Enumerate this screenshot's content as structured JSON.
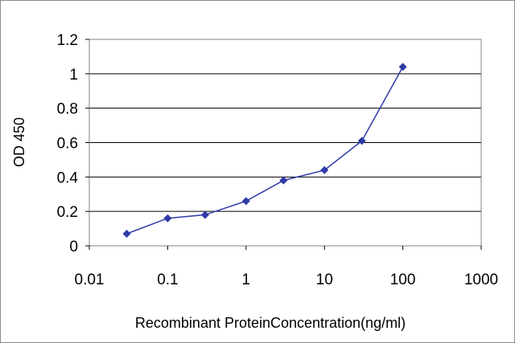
{
  "chart_data": {
    "type": "line",
    "xlabel": "Recombinant ProteinConcentration(ng/ml)",
    "ylabel": "OD 450",
    "xscale": "log",
    "xlim": [
      0.01,
      1000
    ],
    "ylim": [
      0,
      1.2
    ],
    "xticks": [
      "0.01",
      "0.1",
      "1",
      "10",
      "100",
      "1000"
    ],
    "yticks": [
      "0",
      "0.2",
      "0.4",
      "0.6",
      "0.8",
      "1",
      "1.2"
    ],
    "grid": "horizontal",
    "legend": "none",
    "series": [
      {
        "x": [
          0.03,
          0.1,
          0.3,
          1,
          3,
          10,
          30,
          100
        ],
        "y": [
          0.07,
          0.16,
          0.18,
          0.26,
          0.38,
          0.44,
          0.61,
          1.04
        ],
        "color": "#2e3aa8",
        "marker": "diamond"
      }
    ]
  }
}
